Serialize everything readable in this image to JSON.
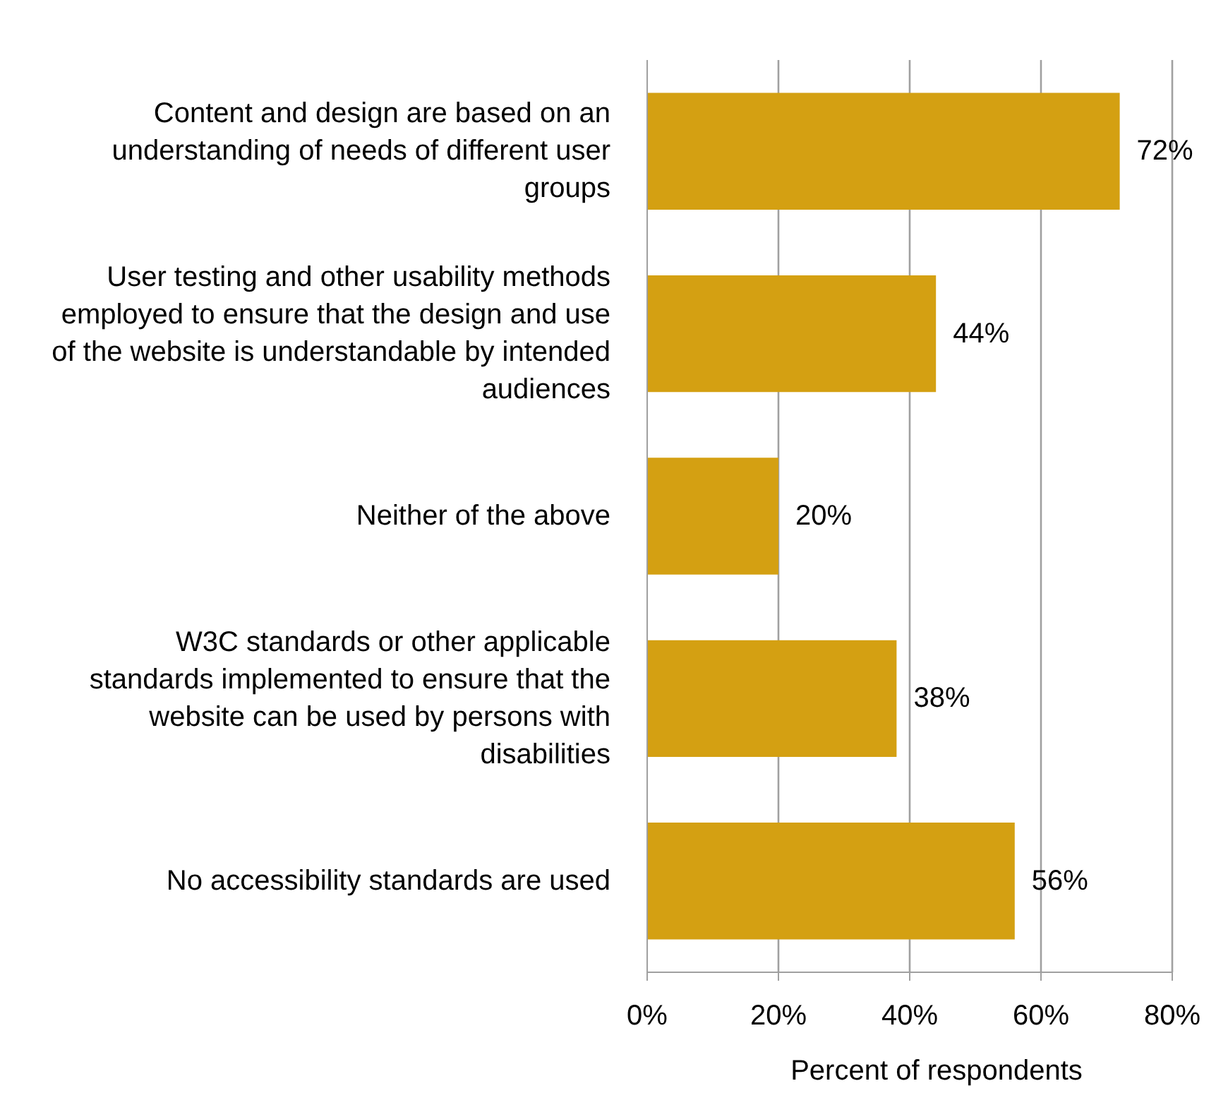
{
  "chart_data": {
    "type": "bar",
    "orientation": "horizontal",
    "categories": [
      "Content and design are based on an understanding of needs of different user groups",
      "User testing and other usability methods employed to ensure that the design and use of the website is understandable by intended audiences",
      "Neither of the above",
      "W3C standards or other applicable standards implemented to ensure that the website can be used by persons with disabilities",
      "No accessibility standards are used"
    ],
    "values": [
      72,
      44,
      20,
      38,
      56
    ],
    "color": "#d4a012",
    "value_labels": [
      "72%",
      "44%",
      "20%",
      "38%",
      "56%"
    ],
    "xlabel": "Percent of respondents",
    "xlim": [
      0,
      80
    ],
    "xticks": [
      {
        "value": 0,
        "label": "0%"
      },
      {
        "value": 20,
        "label": "20%"
      },
      {
        "value": 40,
        "label": "40%"
      },
      {
        "value": 60,
        "label": "60%"
      },
      {
        "value": 80,
        "label": "80%"
      }
    ],
    "grid": "x"
  }
}
